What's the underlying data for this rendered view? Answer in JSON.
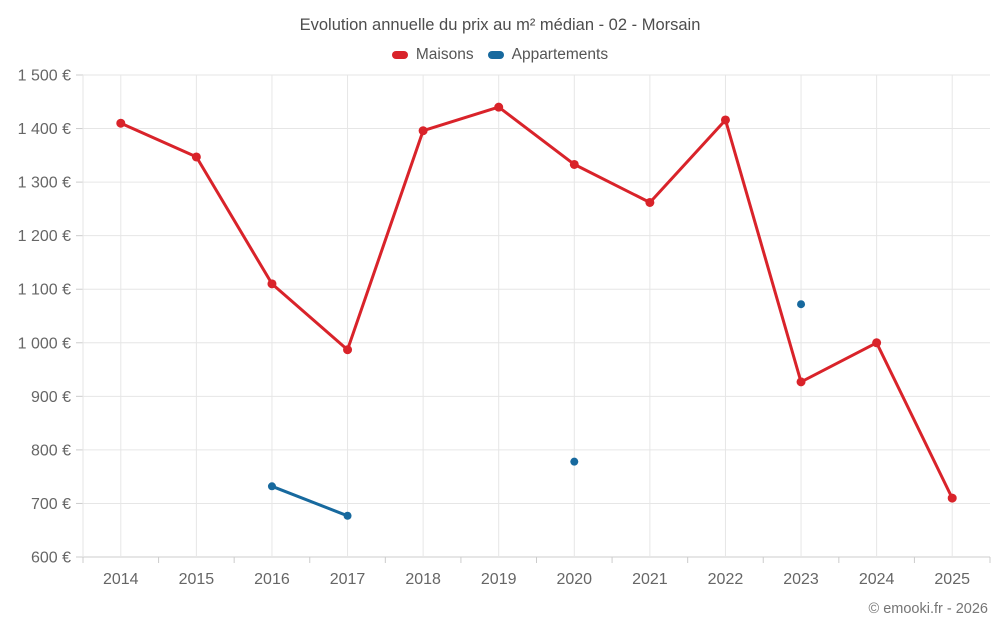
{
  "chart_data": {
    "type": "line",
    "title": "Evolution annuelle du prix au m² médian - 02 - Morsain",
    "categories": [
      "2014",
      "2015",
      "2016",
      "2017",
      "2018",
      "2019",
      "2020",
      "2021",
      "2022",
      "2023",
      "2024",
      "2025"
    ],
    "series": [
      {
        "name": "Maisons",
        "color": "#d9232a",
        "marker_radius": 4.5,
        "values": [
          1410,
          1347,
          1110,
          987,
          1396,
          1440,
          1333,
          1262,
          1416,
          927,
          1000,
          710
        ]
      },
      {
        "name": "Appartements",
        "color": "#17699e",
        "marker_radius": 4,
        "values": [
          null,
          null,
          732,
          677,
          null,
          null,
          778,
          null,
          null,
          1072,
          null,
          null
        ]
      }
    ],
    "ylim": [
      600,
      1500
    ],
    "ytick_step": 100,
    "y_suffix": "€",
    "xlabel": "",
    "ylabel": "",
    "grid": true,
    "legend_position": "top",
    "credit": "© emooki.fr - 2026"
  },
  "style_colors": {
    "grid": "#e6e6e6",
    "axis": "#cccccc",
    "tick_text": "#666666",
    "title_text": "#4d4d4d"
  }
}
